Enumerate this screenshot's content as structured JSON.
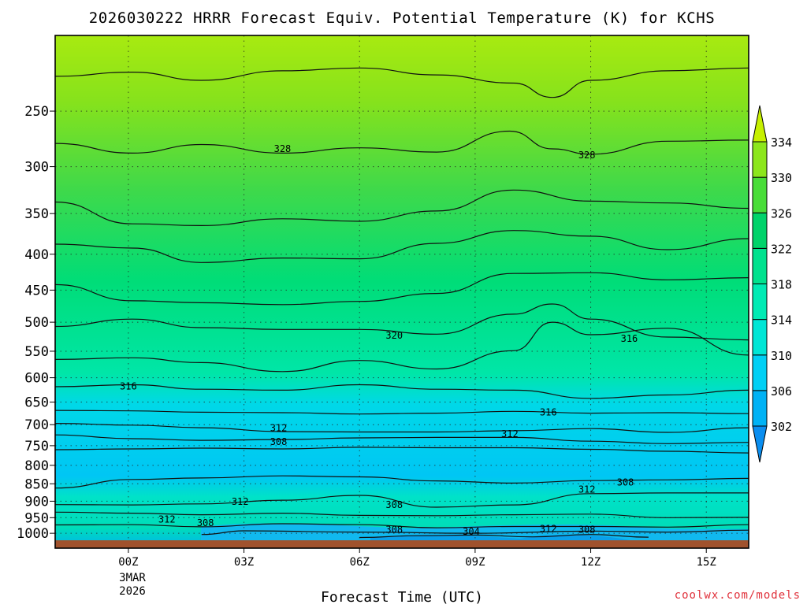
{
  "chart_data": {
    "type": "heatmap",
    "title": "2026030222 HRRR Forecast Equiv. Potential Temperature (K) for KCHS",
    "xlabel": "Forecast Time (UTC)",
    "ylabel": "",
    "y_axis": {
      "scale": "log",
      "reversed": true,
      "range_hPa": [
        1050,
        195
      ],
      "ticks": [
        250,
        300,
        350,
        400,
        450,
        500,
        550,
        600,
        650,
        700,
        750,
        800,
        850,
        900,
        950,
        1000
      ],
      "tick_labels": [
        "250",
        "300",
        "350",
        "400",
        "450",
        "500",
        "550",
        "600",
        "650",
        "700",
        "750",
        "800",
        "850",
        "900",
        "950",
        "1000"
      ]
    },
    "x_axis": {
      "range_hours": [
        -1.9,
        16.1
      ],
      "ticks": [
        0,
        3,
        6,
        9,
        12,
        15
      ],
      "tick_labels": [
        "00Z",
        "03Z",
        "06Z",
        "09Z",
        "12Z",
        "15Z"
      ],
      "date_line1": "3MAR",
      "date_line2": "2026"
    },
    "grid": true,
    "colorbar": {
      "levels": [
        302,
        306,
        310,
        314,
        318,
        322,
        326,
        330,
        334
      ],
      "labels": [
        "302",
        "306",
        "310",
        "314",
        "318",
        "322",
        "326",
        "330",
        "334"
      ],
      "colors": [
        "#0a8ef0",
        "#00b2f5",
        "#00d0f5",
        "#00e6d6",
        "#00ebb4",
        "#00e28e",
        "#00d36a",
        "#48dd38",
        "#8ce61c",
        "#c6f000"
      ]
    },
    "contour_labels": [
      {
        "text": "328",
        "x_hours": 4.0,
        "p_hPa": 283
      },
      {
        "text": "328",
        "x_hours": 11.9,
        "p_hPa": 289
      },
      {
        "text": "320",
        "x_hours": 6.9,
        "p_hPa": 522
      },
      {
        "text": "316",
        "x_hours": 13.0,
        "p_hPa": 528
      },
      {
        "text": "316",
        "x_hours": 0.0,
        "p_hPa": 617
      },
      {
        "text": "316",
        "x_hours": 10.9,
        "p_hPa": 672
      },
      {
        "text": "312",
        "x_hours": 3.9,
        "p_hPa": 708
      },
      {
        "text": "312",
        "x_hours": 9.9,
        "p_hPa": 722
      },
      {
        "text": "308",
        "x_hours": 3.9,
        "p_hPa": 741
      },
      {
        "text": "308",
        "x_hours": 12.9,
        "p_hPa": 846
      },
      {
        "text": "312",
        "x_hours": 11.9,
        "p_hPa": 866
      },
      {
        "text": "312",
        "x_hours": 2.9,
        "p_hPa": 901
      },
      {
        "text": "308",
        "x_hours": 6.9,
        "p_hPa": 911
      },
      {
        "text": "312",
        "x_hours": 1.0,
        "p_hPa": 956
      },
      {
        "text": "308",
        "x_hours": 2.0,
        "p_hPa": 966
      },
      {
        "text": "308",
        "x_hours": 6.9,
        "p_hPa": 988
      },
      {
        "text": "304",
        "x_hours": 8.9,
        "p_hPa": 995
      },
      {
        "text": "312",
        "x_hours": 10.9,
        "p_hPa": 985
      },
      {
        "text": "308",
        "x_hours": 11.9,
        "p_hPa": 988
      }
    ],
    "series": [
      {
        "level": 330,
        "x": [
          -1.9,
          0.1,
          1.9,
          4.0,
          6.0,
          8.0,
          10.0,
          11.0,
          12.0,
          14.0,
          16.1
        ],
        "p": [
          223,
          220,
          226,
          219,
          217,
          222,
          228,
          239,
          226,
          219,
          217
        ]
      },
      {
        "level": 328,
        "x": [
          -1.9,
          0.1,
          1.9,
          4.0,
          6.0,
          8.0,
          9.9,
          11.0,
          12.0,
          14.0,
          16.1
        ],
        "p": [
          278,
          287,
          279,
          287,
          282,
          286,
          267,
          283,
          288,
          276,
          275
        ]
      },
      {
        "level": 326,
        "x": [
          -1.9,
          0.1,
          1.9,
          4.0,
          6.0,
          8.0,
          10.0,
          12.0,
          14.0,
          16.1
        ],
        "p": [
          337,
          362,
          364,
          356,
          359,
          347,
          324,
          336,
          338,
          344
        ]
      },
      {
        "level": 324,
        "x": [
          -1.9,
          0.1,
          1.9,
          4.0,
          6.0,
          8.0,
          10.0,
          12.0,
          14.0,
          16.1
        ],
        "p": [
          387,
          392,
          411,
          405,
          406,
          386,
          370,
          377,
          394,
          380
        ]
      },
      {
        "level": 322,
        "x": [
          -1.9,
          0.1,
          1.9,
          4.0,
          6.0,
          8.0,
          10.0,
          12.0,
          14.0,
          16.1
        ],
        "p": [
          442,
          466,
          469,
          472,
          467,
          455,
          426,
          425,
          435,
          432
        ]
      },
      {
        "level": 320,
        "x": [
          -1.9,
          0.1,
          1.9,
          4.0,
          6.0,
          8.0,
          10.0,
          11.0,
          12.0,
          14.0,
          16.1
        ],
        "p": [
          507,
          495,
          509,
          512,
          512,
          520,
          487,
          471,
          495,
          525,
          530
        ]
      },
      {
        "level": 318,
        "x": [
          -1.9,
          0.1,
          1.9,
          4.0,
          6.0,
          8.0,
          10.0,
          11.0,
          12.0,
          14.0,
          16.1
        ],
        "p": [
          565,
          562,
          571,
          588,
          567,
          583,
          549,
          500,
          521,
          510,
          557
        ]
      },
      {
        "level": 316,
        "x": [
          -1.9,
          0.1,
          1.9,
          4.0,
          6.0,
          8.0,
          10.0,
          12.0,
          14.0,
          16.1
        ],
        "p": [
          618,
          614,
          623,
          625,
          614,
          623,
          625,
          642,
          635,
          625
        ]
      },
      {
        "level": 314,
        "x": [
          -1.9,
          0.1,
          1.9,
          4.0,
          6.0,
          8.0,
          10.0,
          12.0,
          14.0,
          16.1
        ],
        "p": [
          668,
          669,
          672,
          673,
          676,
          674,
          670,
          674,
          673,
          675
        ]
      },
      {
        "level": 312,
        "x": [
          -1.9,
          0.1,
          1.9,
          4.0,
          6.0,
          8.0,
          10.0,
          12.0,
          14.0,
          16.1
        ],
        "p": [
          697,
          701,
          707,
          716,
          717,
          717,
          714,
          709,
          718,
          707
        ]
      },
      {
        "level": 310,
        "x": [
          -1.9,
          0.1,
          1.9,
          4.0,
          6.0,
          8.0,
          10.0,
          12.0,
          14.0,
          16.1
        ],
        "p": [
          724,
          733,
          737,
          735,
          731,
          730,
          730,
          739,
          745,
          742
        ]
      },
      {
        "level": 308,
        "x": [
          -1.9,
          0.1,
          1.9,
          4.0,
          6.0,
          8.0,
          10.0,
          12.0,
          14.0,
          16.1
        ],
        "p": [
          760,
          758,
          756,
          758,
          754,
          755,
          755,
          759,
          764,
          768
        ]
      },
      {
        "level": 306,
        "x": [
          -1.9,
          0.1,
          1.9,
          4.0,
          6.0,
          8.0,
          10.0,
          12.0,
          14.0,
          16.1
        ],
        "p": [
          862,
          838,
          834,
          828,
          831,
          842,
          848,
          841,
          839,
          835
        ]
      },
      {
        "level": 308,
        "x": [
          -1.9,
          0.1,
          1.9,
          4.0,
          6.0,
          8.0,
          10.0,
          12.0,
          14.0,
          16.1
        ],
        "p": [
          910,
          911,
          908,
          897,
          883,
          918,
          911,
          878,
          876,
          876
        ]
      },
      {
        "level": 312,
        "x": [
          -1.9,
          0.1,
          1.9,
          4.0,
          6.0,
          8.0,
          10.0,
          12.0,
          14.0,
          16.1
        ],
        "p": [
          933,
          936,
          941,
          936,
          943,
          944,
          941,
          939,
          950,
          949
        ]
      },
      {
        "level": 310,
        "x": [
          -1.9,
          0.1,
          1.9,
          4.0,
          6.0,
          8.0,
          10.0,
          12.0,
          14.0,
          16.1
        ],
        "p": [
          973,
          972,
          979,
          969,
          972,
          982,
          978,
          978,
          980,
          972
        ]
      },
      {
        "level": 306,
        "x": [
          1.9,
          3.0,
          6.0,
          9.0,
          12.0,
          14.0,
          16.1
        ],
        "p": [
          1004,
          992,
          996,
          1000,
          993,
          996,
          990
        ]
      },
      {
        "level": 304,
        "x": [
          6.0,
          7.5,
          9.0,
          10.5,
          12.0,
          13.5
        ],
        "p": [
          1014,
          1008,
          1006,
          1012,
          1004,
          1013
        ]
      }
    ]
  }
}
